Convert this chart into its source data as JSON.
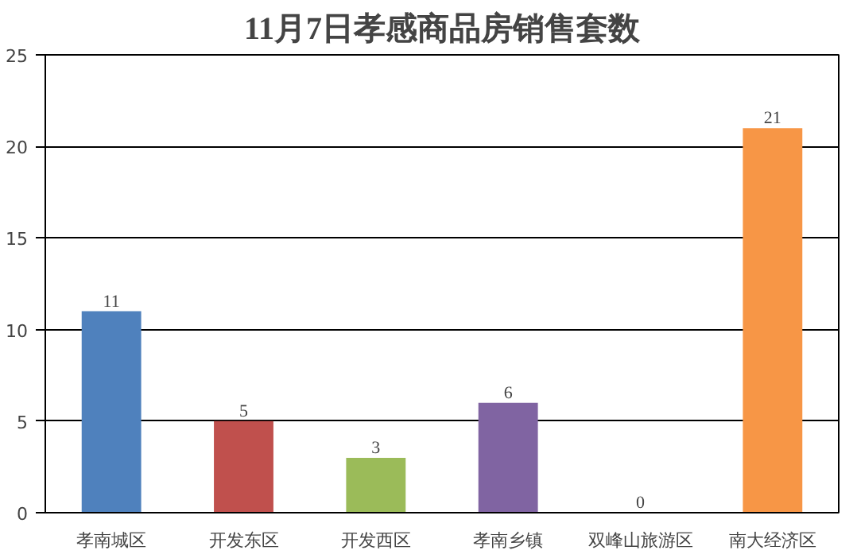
{
  "chart_data": {
    "type": "bar",
    "title": "11月7日孝感商品房销售套数",
    "categories": [
      "孝南城区",
      "开发东区",
      "开发西区",
      "孝南乡镇",
      "双峰山旅游区",
      "南大经济区"
    ],
    "values": [
      11,
      5,
      3,
      6,
      0,
      21
    ],
    "colors": [
      "#4f81bd",
      "#c0504d",
      "#9bbb59",
      "#8064a2",
      "#4bacc6",
      "#f79646"
    ],
    "ylim": [
      0,
      25
    ],
    "yticks": [
      0,
      5,
      10,
      15,
      20,
      25
    ],
    "grid": "y",
    "data_labels": true
  }
}
